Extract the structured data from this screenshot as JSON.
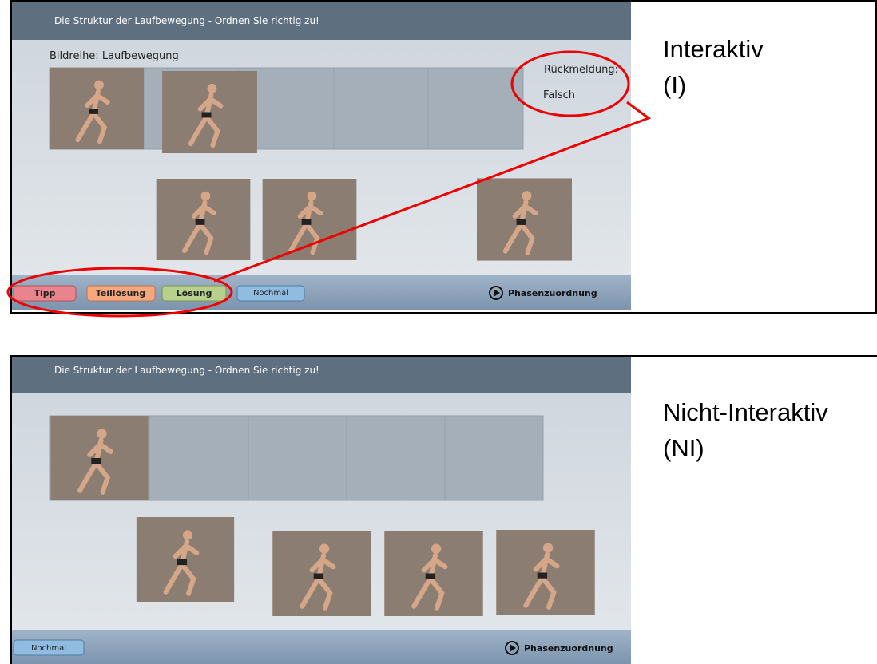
{
  "panels": [
    {
      "title": "Die Struktur der Laufbewegung - Ordnen Sie richtig zu!",
      "subtitle": "Bildreihe: Laufbewegung",
      "feedback_label": "Rückmeldung:",
      "feedback_value": "Falsch",
      "buttons": [
        "Tipp",
        "Teillösung",
        "Lösung",
        "Nochmal"
      ],
      "link": "Phasenzuordnung",
      "caption": "Interaktiv",
      "caption_abbr": "(I)"
    },
    {
      "title": "Die Struktur der Laufbewegung - Ordnen Sie richtig zu!",
      "buttons": [
        "Nochmal"
      ],
      "link": "Phasenzuordnung",
      "caption": "Nicht-Interaktiv",
      "caption_abbr": "(NI)"
    }
  ]
}
